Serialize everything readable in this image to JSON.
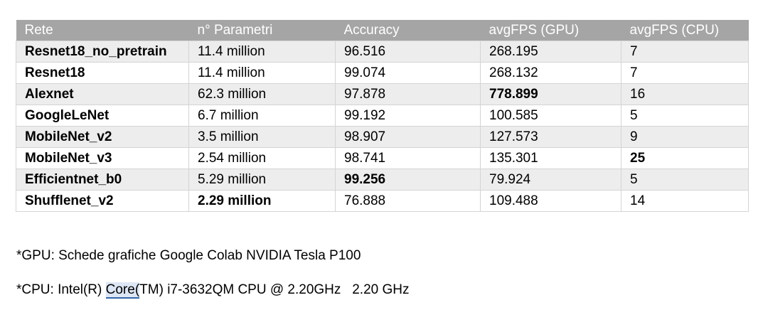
{
  "table": {
    "headers": [
      "Rete",
      "n° Parametri",
      "Accuracy",
      "avgFPS (GPU)",
      "avgFPS (CPU)"
    ],
    "rows": [
      {
        "name": "Resnet18_no_pretrain",
        "params": "11.4 million",
        "accuracy": "96.516",
        "fps_gpu": "268.195",
        "fps_cpu": "7"
      },
      {
        "name": "Resnet18",
        "params": "11.4 million",
        "accuracy": "99.074",
        "fps_gpu": "268.132",
        "fps_cpu": "7"
      },
      {
        "name": "Alexnet",
        "params": "62.3 million",
        "accuracy": "97.878",
        "fps_gpu": "778.899",
        "fps_cpu": "16"
      },
      {
        "name": "GoogleLeNet",
        "params": "6.7 million",
        "accuracy": "99.192",
        "fps_gpu": "100.585",
        "fps_cpu": "5"
      },
      {
        "name": "MobileNet_v2",
        "params": "3.5 million",
        "accuracy": "98.907",
        "fps_gpu": "127.573",
        "fps_cpu": "9"
      },
      {
        "name": "MobileNet_v3",
        "params": "2.54 million",
        "accuracy": "98.741",
        "fps_gpu": "135.301",
        "fps_cpu": "25"
      },
      {
        "name": "Efficientnet_b0",
        "params": "5.29 million",
        "accuracy": "99.256",
        "fps_gpu": "79.924",
        "fps_cpu": "5"
      },
      {
        "name": "Shufflenet_v2",
        "params": "2.29 million",
        "accuracy": "76.888",
        "fps_gpu": "109.488",
        "fps_cpu": "14"
      }
    ]
  },
  "notes": {
    "gpu": "*GPU: Schede grafiche Google Colab NVIDIA Tesla P100",
    "cpu_before": "*CPU: Intel(R) ",
    "cpu_highlight": "Core(",
    "cpu_after": "TM) i7-3632QM CPU @ 2.20GHz   2.20 GHz"
  },
  "colors": {
    "header_bg": "#a5a5a5",
    "header_text": "#ffffff",
    "row_alt_bg": "#ededed",
    "grid_line": "#d4d4d4"
  }
}
